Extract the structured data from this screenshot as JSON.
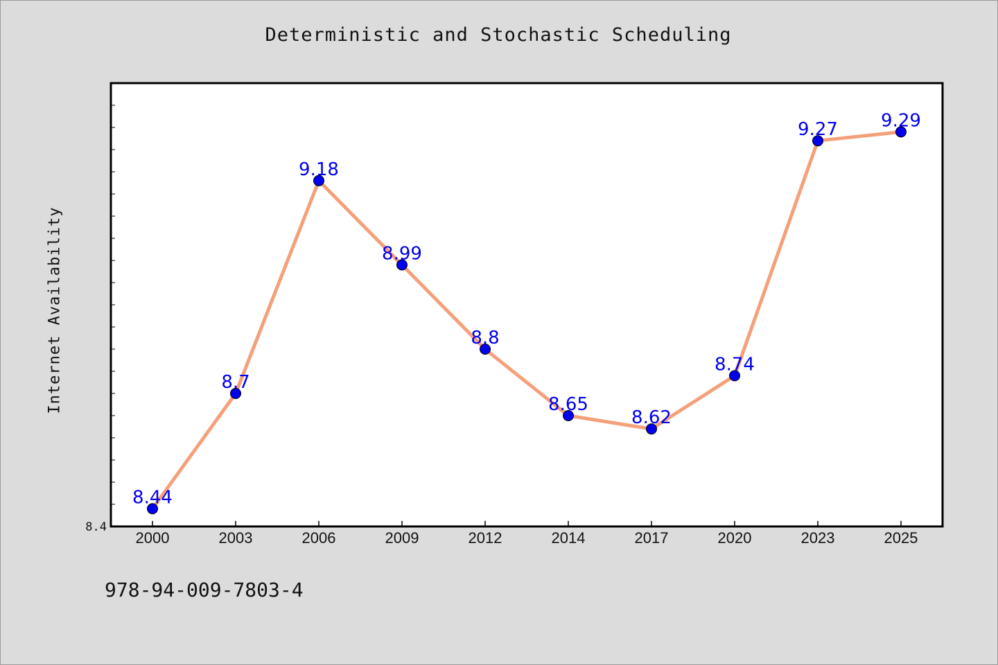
{
  "chart_data": {
    "type": "line",
    "title": "Deterministic and Stochastic Scheduling",
    "ylabel": "Internet Availability",
    "xlabel": "",
    "categories": [
      "2000",
      "2003",
      "2006",
      "2009",
      "2012",
      "2014",
      "2017",
      "2020",
      "2023",
      "2025"
    ],
    "series": [
      {
        "values": [
          8.44,
          8.7,
          9.18,
          8.99,
          8.8,
          8.65,
          8.62,
          8.74,
          9.27,
          9.29
        ],
        "data_labels": [
          "8.44",
          "8.7",
          "9.18",
          "8.99",
          "8.8",
          "8.65",
          "8.62",
          "8.74",
          "9.27",
          "9.29"
        ],
        "line_color": "#f4a07a",
        "marker_color": "#0000ee",
        "label_color": "#0000ee"
      }
    ],
    "ylim": [
      8.4,
      9.4
    ],
    "y_tick_label": "8.4",
    "grid": false,
    "legend": "none"
  },
  "footer": {
    "isbn": "978-94-009-7803-4"
  },
  "colors": {
    "background": "#dcdcdc",
    "plot_background": "#ffffff",
    "axis": "#000000"
  }
}
